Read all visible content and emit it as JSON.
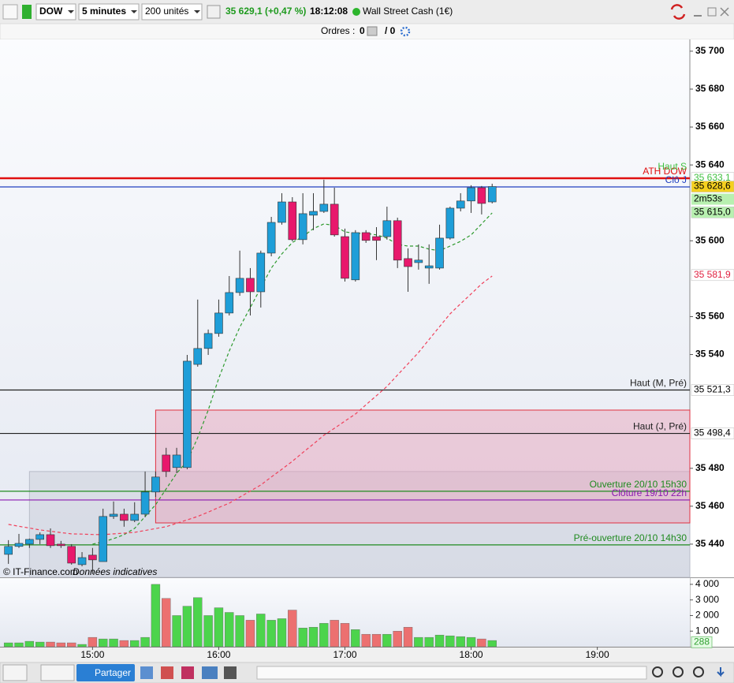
{
  "toolbar": {
    "symbol": "DOW",
    "period": "5 minutes",
    "units": "200 unités",
    "quote": "35 629,1 (+0,47 %)",
    "time": "18:12:08",
    "market": "Wall Street Cash (1€)"
  },
  "orders": {
    "label": "Ordres :",
    "buy": "0",
    "sell": "/ 0"
  },
  "footer": {
    "share": "Partager"
  },
  "chart_data": {
    "type": "candlestick",
    "watermark": "© IT-Finance.com",
    "note": "Données indicatives",
    "x": [
      "14:20",
      "14:25",
      "14:30",
      "14:35",
      "14:40",
      "14:45",
      "14:50",
      "14:55",
      "15:00",
      "15:05",
      "15:10",
      "15:15",
      "15:20",
      "15:25",
      "15:30",
      "15:35",
      "15:40",
      "15:45",
      "15:50",
      "15:55",
      "16:00",
      "16:05",
      "16:10",
      "16:15",
      "16:20",
      "16:25",
      "16:30",
      "16:35",
      "16:40",
      "16:45",
      "16:50",
      "16:55",
      "17:00",
      "17:05",
      "17:10",
      "17:15",
      "17:20",
      "17:25",
      "17:30",
      "17:35",
      "17:40",
      "17:45",
      "17:50",
      "17:55",
      "18:00",
      "18:05",
      "18:10"
    ],
    "open": [
      35434.6,
      35438.8,
      35440.0,
      35442.5,
      35445.0,
      35440.0,
      35438.8,
      35429.2,
      35434.2,
      35430.8,
      35454.6,
      35455.8,
      35452.5,
      35455.8,
      35467.5,
      35487.0,
      35480.4,
      35480.4,
      35534.8,
      35543.2,
      35551.1,
      35561.9,
      35572.7,
      35580.2,
      35573.1,
      35593.5,
      35609.7,
      35620.5,
      35600.6,
      35613.5,
      35615.5,
      35619.3,
      35602.2,
      35579.4,
      35604.3,
      35602.2,
      35602.2,
      35610.6,
      35590.6,
      35588.5,
      35585.6,
      35585.6,
      35601.4,
      35617.2,
      35621.0,
      35628.0,
      35620.5
    ],
    "close": [
      35438.8,
      35440.4,
      35442.5,
      35445.0,
      35439.2,
      35439.2,
      35430.0,
      35432.9,
      35431.7,
      35454.6,
      35455.8,
      35452.5,
      35455.8,
      35467.5,
      35475.4,
      35478.3,
      35487.0,
      35536.5,
      35543.2,
      35551.1,
      35561.9,
      35572.7,
      35580.2,
      35573.1,
      35593.5,
      35609.7,
      35620.5,
      35600.6,
      35614.3,
      35615.5,
      35619.3,
      35603.1,
      35580.2,
      35604.3,
      35600.2,
      35600.2,
      35610.6,
      35589.8,
      35586.4,
      35589.8,
      35586.8,
      35601.4,
      35617.2,
      35621.0,
      35628.0,
      35619.7,
      35628.6
    ],
    "high": [
      35442.1,
      35445.4,
      35442.9,
      35446.2,
      35448.3,
      35441.7,
      35440.0,
      35435.8,
      35438.0,
      35458.7,
      35462.5,
      35458.7,
      35462.1,
      35478.3,
      35478.3,
      35490.8,
      35490.8,
      35539.8,
      35569.0,
      35553.2,
      35569.0,
      35581.4,
      35594.8,
      35585.6,
      35594.8,
      35612.6,
      35625.1,
      35623.0,
      35625.1,
      35625.1,
      35632.2,
      35628.0,
      35606.4,
      35605.6,
      35605.6,
      35607.2,
      35618.0,
      35612.2,
      35596.0,
      35598.1,
      35598.1,
      35608.5,
      35618.0,
      35625.1,
      35629.3,
      35628.9,
      35630.1
    ],
    "low": [
      35429.6,
      35438.0,
      35438.0,
      35440.0,
      35438.0,
      35438.0,
      35429.2,
      35428.3,
      35424.2,
      35430.8,
      35453.3,
      35449.2,
      35451.6,
      35454.2,
      35464.9,
      35475.4,
      35477.4,
      35479.5,
      35533.6,
      35539.8,
      35549.4,
      35560.6,
      35571.0,
      35560.6,
      35564.8,
      35591.8,
      35608.5,
      35599.7,
      35598.1,
      35605.6,
      35614.7,
      35602.2,
      35578.5,
      35578.5,
      35598.9,
      35589.8,
      35600.6,
      35585.6,
      35573.1,
      35584.8,
      35577.3,
      35584.8,
      35600.6,
      35615.5,
      35614.7,
      35613.9,
      35619.7
    ],
    "up_color": "#1e9ed8",
    "down_color": "#e8186c",
    "moving_averages": [
      {
        "color": "#2e9a2e",
        "values": [
          null,
          null,
          null,
          null,
          null,
          null,
          null,
          null,
          35440.0,
          35441.2,
          35442.9,
          35445.0,
          35448.3,
          35454.6,
          35460.8,
          35469.1,
          35477.4,
          35483.7,
          35496.2,
          35510.7,
          35527.4,
          35541.9,
          35554.4,
          35564.8,
          35575.2,
          35585.6,
          35593.1,
          35599.1,
          35602.2,
          35606.4,
          35608.9,
          35608.1,
          35604.7,
          35603.9,
          35603.9,
          35603.1,
          35601.4,
          35598.1,
          35597.2,
          35597.2,
          35595.6,
          35594.8,
          35597.2,
          35599.7,
          35603.1,
          35608.9,
          35614.7
        ]
      },
      {
        "color": "#f0405a",
        "values": [
          35450.4,
          35449.4,
          35448.5,
          35447.5,
          35446.8,
          35446.1,
          35445.4,
          35445.3,
          35445.1,
          35445.0,
          35445.4,
          35445.8,
          35446.2,
          35447.2,
          35448.2,
          35449.2,
          35451.0,
          35452.8,
          35454.6,
          35456.9,
          35459.3,
          35461.6,
          35464.8,
          35468.0,
          35471.2,
          35475.4,
          35479.5,
          35483.7,
          35488.3,
          35492.8,
          35497.4,
          35501.1,
          35504.9,
          35508.6,
          35513.5,
          35518.3,
          35523.2,
          35529.2,
          35535.1,
          35541.1,
          35547.9,
          35554.7,
          35561.5,
          35566.8,
          35572.0,
          35577.3,
          35581.4
        ]
      }
    ],
    "zones": [
      {
        "start": "14:30",
        "top": 35478.3,
        "bottom": 35422.5,
        "fill": "#c8ccd8",
        "stroke": "#b8bcc8"
      },
      {
        "start": "15:30",
        "top": 35510.7,
        "bottom": 35451.2,
        "fill": "#e8a0b8",
        "stroke": "#e03040"
      }
    ],
    "levels": [
      {
        "name": "ATH DOW",
        "value": 35633.0,
        "color": "#e01010"
      },
      {
        "name": "Clô J",
        "value": 35628.4,
        "color": "#2040c0"
      },
      {
        "name": "Haut (M, Pré)",
        "value": 35521.3,
        "color": "#202020"
      },
      {
        "name": "Haut (J, Pré)",
        "value": 35498.4,
        "color": "#202020"
      },
      {
        "name": "Ouverture 20/10 15h30",
        "value": 35467.9,
        "color": "#1f8a1f"
      },
      {
        "name": "Clôture 19/10 22h",
        "value": 35463.3,
        "color": "#8a18b0"
      },
      {
        "name": "Pré-ouverture 20/10 14h30",
        "value": 35439.6,
        "color": "#1f8a1f"
      }
    ],
    "high_label": {
      "name": "Haut S",
      "value": 35633.1,
      "color": "#40c040"
    },
    "price_tags": [
      {
        "value": 35633.1,
        "label": "35 633,1",
        "color": "#40c040",
        "background": "#ffffff"
      },
      {
        "value": 35628.6,
        "label": "35 628,6",
        "color": "#000000",
        "background": "#f5d020"
      },
      {
        "value": 35615.0,
        "label": "35 615,0",
        "color": "#000000",
        "background": "#b8f0b0"
      },
      {
        "value": 35581.9,
        "label": "35 581,9",
        "color": "#e02040",
        "background": "#ffffff"
      },
      {
        "value": 35521.3,
        "label": "35 521,3",
        "color": "#000000",
        "background": "#ffffff"
      },
      {
        "value": 35498.4,
        "label": "35 498,4",
        "color": "#000000",
        "background": "#ffffff"
      }
    ],
    "countdown": "2m53s",
    "xlim": [
      "14:16",
      "19:44"
    ],
    "xticks": [
      "15:00",
      "16:00",
      "17:00",
      "18:00",
      "19:00"
    ],
    "ylim": [
      35422.5,
      35706.2
    ],
    "yticks": [
      {
        "value": 35440,
        "label": "35 440"
      },
      {
        "value": 35460,
        "label": "35 460"
      },
      {
        "value": 35480,
        "label": "35 480"
      },
      {
        "value": 35540,
        "label": "35 540"
      },
      {
        "value": 35560,
        "label": "35 560"
      },
      {
        "value": 35600,
        "label": "35 600"
      },
      {
        "value": 35640,
        "label": "35 640"
      },
      {
        "value": 35660,
        "label": "35 660"
      },
      {
        "value": 35680,
        "label": "35 680"
      },
      {
        "value": 35700,
        "label": "35 700"
      }
    ],
    "volume": {
      "values": [
        250,
        250,
        350,
        300,
        300,
        250,
        250,
        150,
        600,
        500,
        500,
        400,
        400,
        600,
        4000,
        3100,
        2000,
        2600,
        3150,
        2000,
        2500,
        2200,
        2000,
        1700,
        2100,
        1700,
        1800,
        2350,
        1200,
        1250,
        1500,
        1700,
        1500,
        1100,
        800,
        800,
        800,
        1000,
        1250,
        600,
        600,
        750,
        700,
        650,
        600,
        500,
        400
      ],
      "up_color": "#4cd44c",
      "down_color": "#ec7070",
      "ylim": [
        0,
        4400
      ],
      "yticks": [
        {
          "value": 1000,
          "label": "1 000"
        },
        {
          "value": 2000,
          "label": "2 000"
        },
        {
          "value": 3000,
          "label": "3 000"
        },
        {
          "value": 4000,
          "label": "4 000"
        }
      ],
      "last": 288
    }
  }
}
